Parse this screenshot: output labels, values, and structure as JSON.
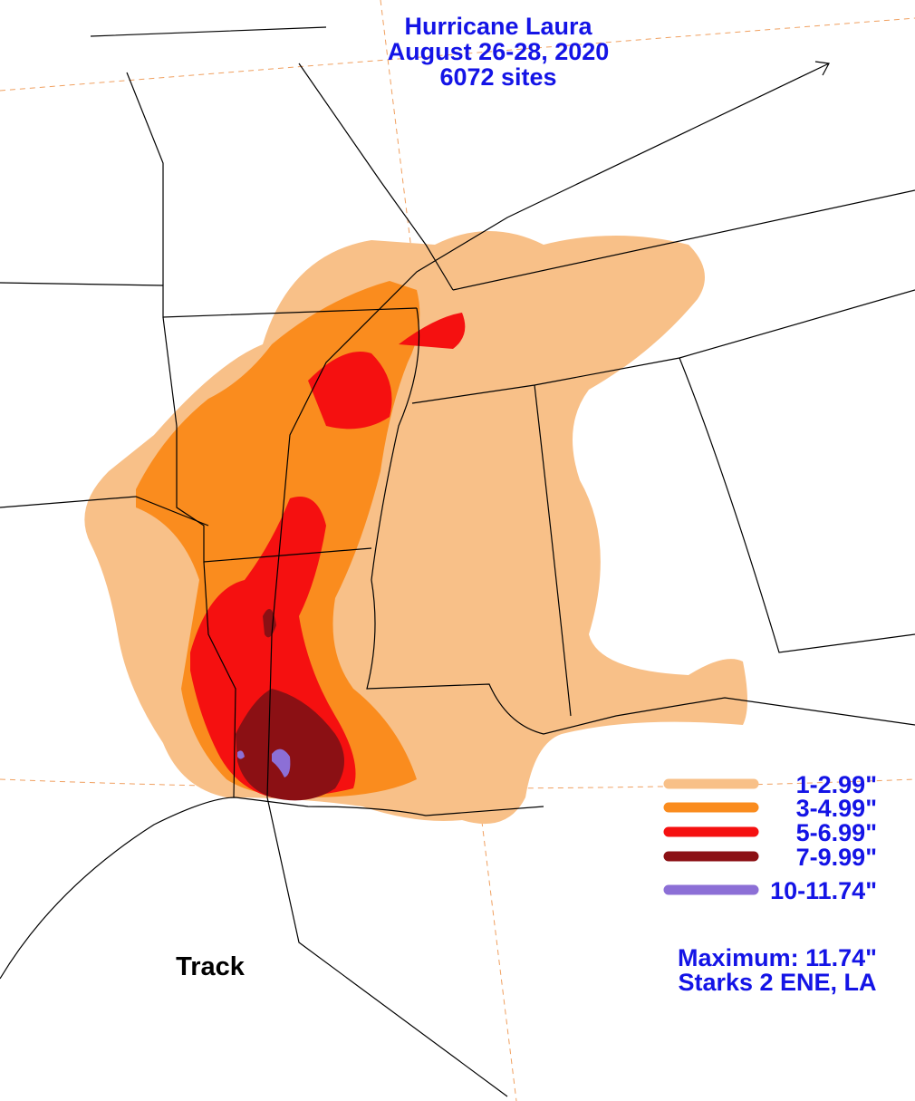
{
  "title": [
    "Hurricane Laura",
    "August 26-28, 2020",
    "6072 sites"
  ],
  "legend": [
    {
      "label": "1-2.99\"",
      "color": "#f8c088"
    },
    {
      "label": "3-4.99\"",
      "color": "#fa8c1e"
    },
    {
      "label": "5-6.99\"",
      "color": "#f51010"
    },
    {
      "label": "7-9.99\"",
      "color": "#8b1014"
    },
    {
      "label": "10-11.74\"",
      "color": "#8c6fd6"
    }
  ],
  "maximum": [
    "Maximum:  11.74\"",
    "Starks 2 ENE, LA"
  ],
  "track_label": "Track"
}
